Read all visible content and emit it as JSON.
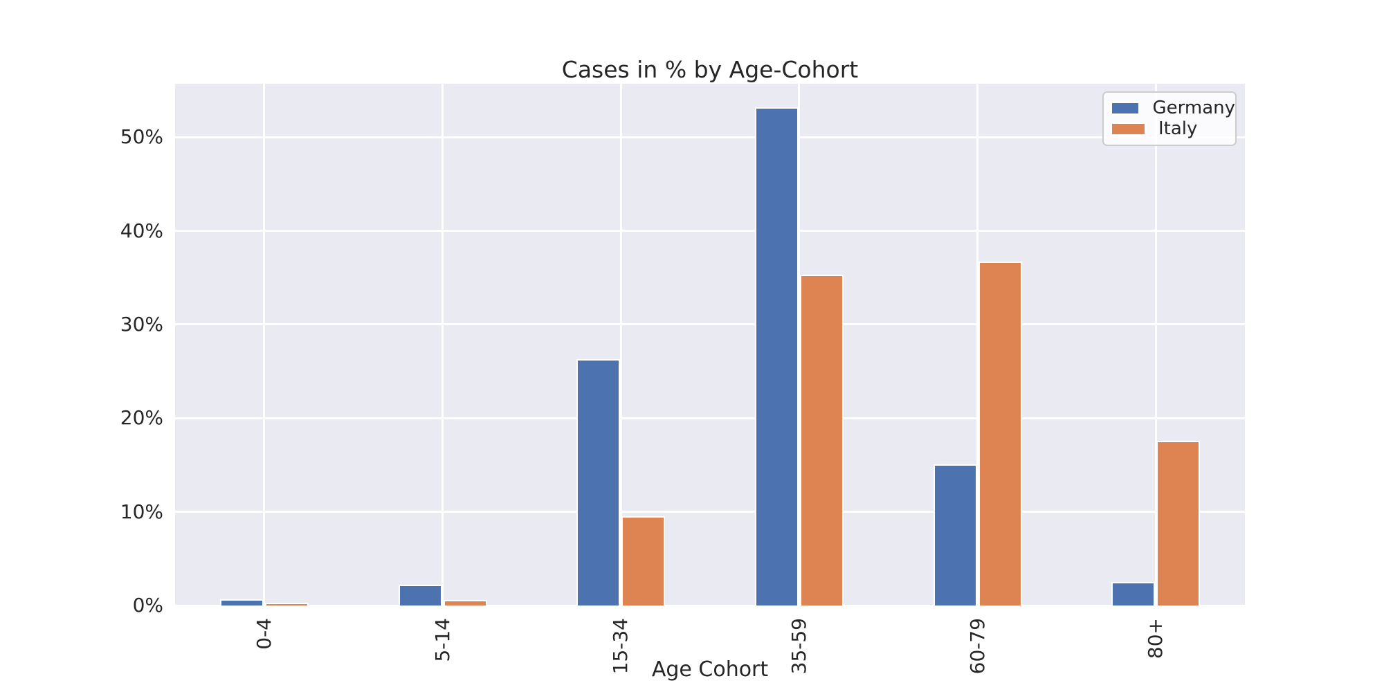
{
  "chart_data": {
    "type": "bar",
    "title": "Cases in % by Age-Cohort",
    "xlabel": "Age Cohort",
    "ylabel": "",
    "categories": [
      "0-4",
      "5-14",
      "15-34",
      "35-59",
      "60-79",
      "80+"
    ],
    "series": [
      {
        "name": "Germany",
        "color": "#4C72B0",
        "values": [
          0.7,
          2.2,
          26.3,
          53.2,
          15.1,
          2.5
        ]
      },
      {
        "name": "Italy",
        "color": "#DD8452",
        "values": [
          0.3,
          0.6,
          9.5,
          35.3,
          36.7,
          17.6
        ]
      }
    ],
    "yticks": [
      {
        "value": 0,
        "label": "0%"
      },
      {
        "value": 10,
        "label": "10%"
      },
      {
        "value": 20,
        "label": "20%"
      },
      {
        "value": 30,
        "label": "30%"
      },
      {
        "value": 40,
        "label": "40%"
      },
      {
        "value": 50,
        "label": "50%"
      }
    ],
    "ylim": [
      0,
      55.7
    ],
    "grid": true,
    "legend_position": "upper right",
    "colors": {
      "plot_background": "#EAEAF2",
      "grid": "#FFFFFF",
      "text": "#262626",
      "figure_background": "#FFFFFF"
    }
  }
}
